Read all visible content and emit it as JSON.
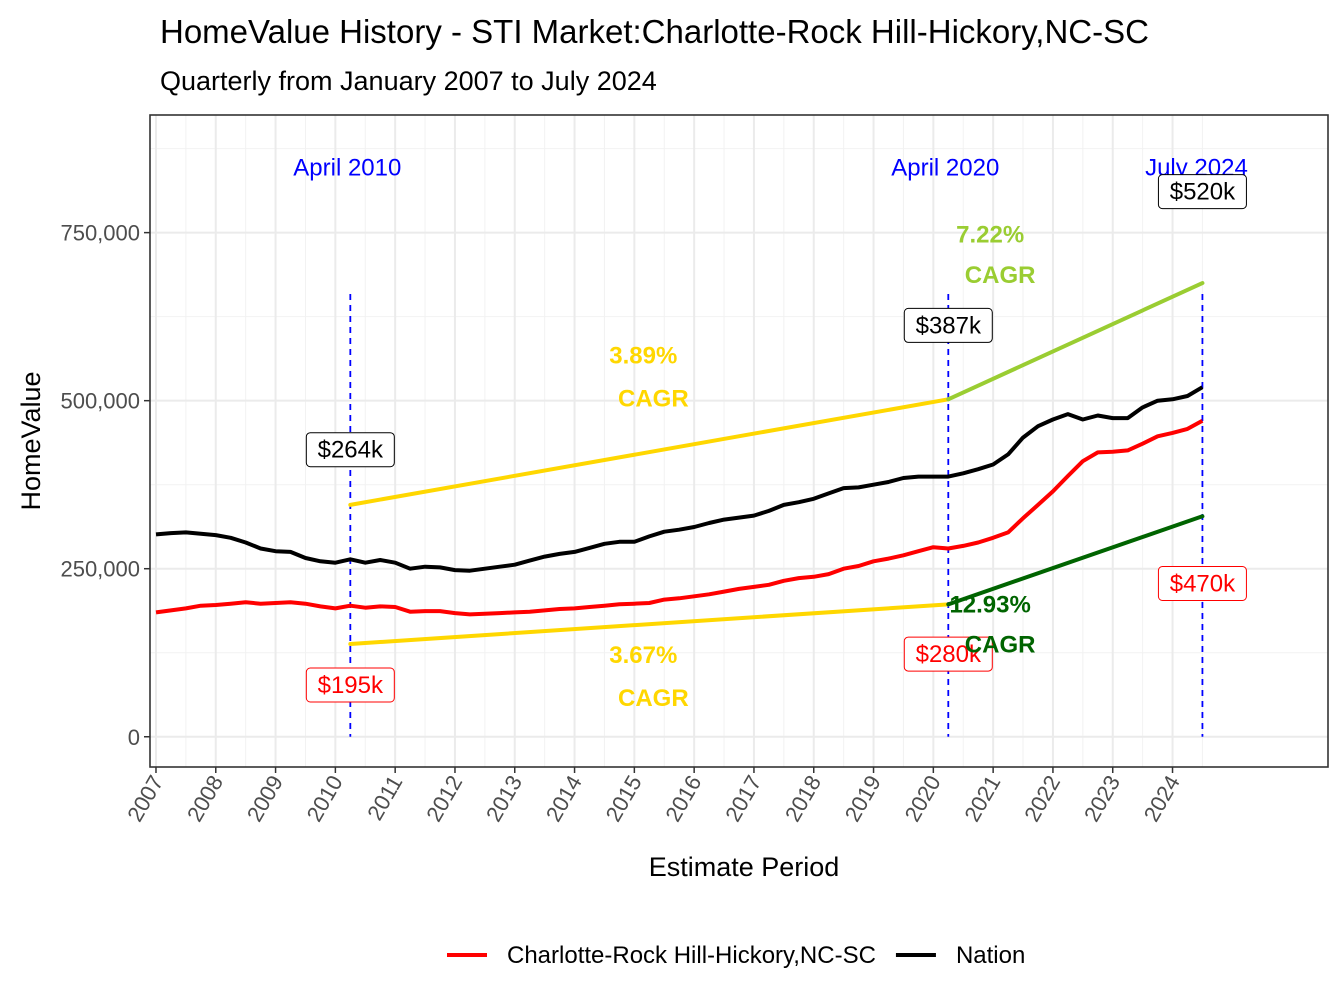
{
  "chart_data": {
    "type": "line",
    "title": "HomeValue History - STI Market:Charlotte-Rock Hill-Hickory,NC-SC",
    "subtitle": "Quarterly from January 2007 to July 2024",
    "xlabel": "Estimate Period",
    "ylabel": "HomeValue",
    "xlim": [
      2006.9,
      2026.6
    ],
    "ylim": [
      -45000,
      925000
    ],
    "y_ticks": [
      0,
      250000,
      500000,
      750000
    ],
    "y_tick_labels": [
      "0",
      "250,000",
      "500,000",
      "750,000"
    ],
    "x_ticks": [
      2007,
      2008,
      2009,
      2010,
      2011,
      2012,
      2013,
      2014,
      2015,
      2016,
      2017,
      2018,
      2019,
      2020,
      2021,
      2022,
      2023,
      2024
    ],
    "x_tick_labels": [
      "2007",
      "2008",
      "2009",
      "2010",
      "2011",
      "2012",
      "2013",
      "2014",
      "2015",
      "2016",
      "2017",
      "2018",
      "2019",
      "2020",
      "2021",
      "2022",
      "2023",
      "2024"
    ],
    "series": [
      {
        "name": "Charlotte-Rock Hill-Hickory,NC-SC",
        "color": "#ff0000",
        "x": [
          2007.0,
          2007.25,
          2007.5,
          2007.75,
          2008.0,
          2008.25,
          2008.5,
          2008.75,
          2009.0,
          2009.25,
          2009.5,
          2009.75,
          2010.0,
          2010.25,
          2010.5,
          2010.75,
          2011.0,
          2011.25,
          2011.5,
          2011.75,
          2012.0,
          2012.25,
          2012.5,
          2012.75,
          2013.0,
          2013.25,
          2013.5,
          2013.75,
          2014.0,
          2014.25,
          2014.5,
          2014.75,
          2015.0,
          2015.25,
          2015.5,
          2015.75,
          2016.0,
          2016.25,
          2016.5,
          2016.75,
          2017.0,
          2017.25,
          2017.5,
          2017.75,
          2018.0,
          2018.25,
          2018.5,
          2018.75,
          2019.0,
          2019.25,
          2019.5,
          2019.75,
          2020.0,
          2020.25,
          2020.5,
          2020.75,
          2021.0,
          2021.25,
          2021.5,
          2021.75,
          2022.0,
          2022.25,
          2022.5,
          2022.75,
          2023.0,
          2023.25,
          2023.5,
          2023.75,
          2024.0,
          2024.25,
          2024.5
        ],
        "values": [
          185000,
          188000,
          191000,
          195000,
          196000,
          198000,
          200000,
          198000,
          199000,
          200000,
          198000,
          194000,
          191000,
          195000,
          192000,
          194000,
          193000,
          186000,
          187000,
          187000,
          184000,
          182000,
          183000,
          184000,
          185000,
          186000,
          188000,
          190000,
          191000,
          193000,
          195000,
          197000,
          198000,
          199000,
          204000,
          206000,
          209000,
          212000,
          216000,
          220000,
          223000,
          226000,
          232000,
          236000,
          238000,
          242000,
          250000,
          254000,
          261000,
          265000,
          270000,
          276000,
          282000,
          280000,
          284000,
          289000,
          296000,
          304000,
          325000,
          345000,
          365000,
          388000,
          410000,
          423000,
          424000,
          426000,
          436000,
          447000,
          452000,
          458000,
          470000
        ]
      },
      {
        "name": "Nation",
        "color": "#000000",
        "x": [
          2007.0,
          2007.25,
          2007.5,
          2007.75,
          2008.0,
          2008.25,
          2008.5,
          2008.75,
          2009.0,
          2009.25,
          2009.5,
          2009.75,
          2010.0,
          2010.25,
          2010.5,
          2010.75,
          2011.0,
          2011.25,
          2011.5,
          2011.75,
          2012.0,
          2012.25,
          2012.5,
          2012.75,
          2013.0,
          2013.25,
          2013.5,
          2013.75,
          2014.0,
          2014.25,
          2014.5,
          2014.75,
          2015.0,
          2015.25,
          2015.5,
          2015.75,
          2016.0,
          2016.25,
          2016.5,
          2016.75,
          2017.0,
          2017.25,
          2017.5,
          2017.75,
          2018.0,
          2018.25,
          2018.5,
          2018.75,
          2019.0,
          2019.25,
          2019.5,
          2019.75,
          2020.0,
          2020.25,
          2020.5,
          2020.75,
          2021.0,
          2021.25,
          2021.5,
          2021.75,
          2022.0,
          2022.25,
          2022.5,
          2022.75,
          2023.0,
          2023.25,
          2023.5,
          2023.75,
          2024.0,
          2024.25,
          2024.5
        ],
        "values": [
          301000,
          303000,
          304000,
          302000,
          300000,
          296000,
          289000,
          280000,
          276000,
          275000,
          266000,
          261000,
          259000,
          264000,
          259000,
          263000,
          259000,
          250000,
          253000,
          252000,
          248000,
          247000,
          250000,
          253000,
          256000,
          262000,
          268000,
          272000,
          275000,
          281000,
          287000,
          290000,
          290000,
          298000,
          305000,
          308000,
          312000,
          318000,
          323000,
          326000,
          329000,
          336000,
          345000,
          349000,
          354000,
          362000,
          370000,
          371000,
          375000,
          379000,
          385000,
          387000,
          387000,
          387000,
          392000,
          398000,
          405000,
          420000,
          445000,
          462000,
          472000,
          480000,
          472000,
          478000,
          474000,
          474000,
          490000,
          500000,
          502000,
          507000,
          520000
        ]
      }
    ],
    "cagr_lines": [
      {
        "x": [
          2010.25,
          2020.25
        ],
        "values": [
          345000,
          502000
        ],
        "color": "#ffd700"
      },
      {
        "x": [
          2010.25,
          2020.25
        ],
        "values": [
          138000,
          197000
        ],
        "color": "#ffd700"
      },
      {
        "x": [
          2020.25,
          2024.5
        ],
        "values": [
          502000,
          675000
        ],
        "color": "#9acd32"
      },
      {
        "x": [
          2020.25,
          2024.5
        ],
        "values": [
          197000,
          328000
        ],
        "color": "#006400"
      }
    ],
    "reference_lines": [
      {
        "x": 2010.25,
        "label": "April 2010",
        "color": "#0000ff"
      },
      {
        "x": 2020.25,
        "label": "April 2020",
        "color": "#0000ff"
      },
      {
        "x": 2024.5,
        "label": "July 2024",
        "color": "#0000ff"
      }
    ],
    "value_labels": [
      {
        "text": "$264k",
        "series": "Nation",
        "x": 2010.25
      },
      {
        "text": "$387k",
        "series": "Nation",
        "x": 2020.25
      },
      {
        "text": "$520k",
        "series": "Nation",
        "x": 2024.5
      },
      {
        "text": "$195k",
        "series": "Charlotte-Rock Hill-Hickory,NC-SC",
        "x": 2010.25
      },
      {
        "text": "$280k",
        "series": "Charlotte-Rock Hill-Hickory,NC-SC",
        "x": 2020.25
      },
      {
        "text": "$470k",
        "series": "Charlotte-Rock Hill-Hickory,NC-SC",
        "x": 2024.5
      }
    ],
    "cagr_annotations": [
      {
        "rate": "3.89%",
        "suffix": "CAGR",
        "color": "#ffd700",
        "period": "2010-2020",
        "series": "Nation"
      },
      {
        "rate": "3.67%",
        "suffix": "CAGR",
        "color": "#ffd700",
        "period": "2010-2020",
        "series": "Charlotte-Rock Hill-Hickory,NC-SC"
      },
      {
        "rate": "7.22%",
        "suffix": "CAGR",
        "color": "#9acd32",
        "period": "2020-2024",
        "series": "Nation"
      },
      {
        "rate": "12.93%",
        "suffix": "CAGR",
        "color": "#006400",
        "period": "2020-2024",
        "series": "Charlotte-Rock Hill-Hickory,NC-SC"
      }
    ],
    "legend": {
      "position": "bottom",
      "items": [
        {
          "label": "Charlotte-Rock Hill-Hickory,NC-SC",
          "color": "#ff0000"
        },
        {
          "label": "Nation",
          "color": "#000000"
        }
      ]
    },
    "grid": true
  }
}
